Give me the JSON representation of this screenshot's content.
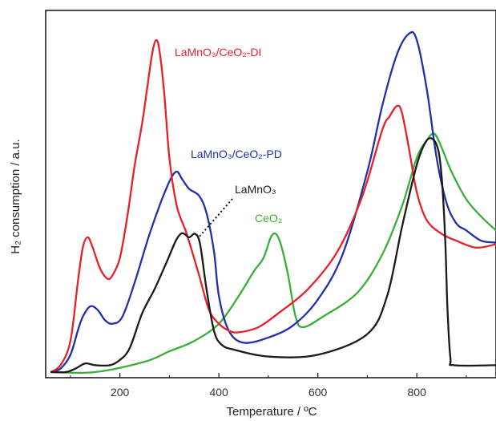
{
  "chart_data": {
    "type": "line",
    "title": "",
    "xlabel": "Temperature / ºC",
    "ylabel": "H₂ consumption / a.u.",
    "xlim": [
      50,
      960
    ],
    "ylim": [
      0,
      1.0
    ],
    "x_ticks": [
      200,
      400,
      600,
      800
    ],
    "y_ticks": [],
    "grid": false,
    "legend": "none (series labelled directly on plot)",
    "series": [
      {
        "name": "LaMnO₃/CeO₂-DI",
        "color": "#e8202a",
        "points": [
          [
            60,
            0.0
          ],
          [
            80,
            0.02
          ],
          [
            100,
            0.09
          ],
          [
            115,
            0.26
          ],
          [
            125,
            0.36
          ],
          [
            135,
            0.39
          ],
          [
            145,
            0.36
          ],
          [
            160,
            0.3
          ],
          [
            175,
            0.27
          ],
          [
            185,
            0.28
          ],
          [
            200,
            0.33
          ],
          [
            215,
            0.45
          ],
          [
            230,
            0.6
          ],
          [
            245,
            0.72
          ],
          [
            255,
            0.82
          ],
          [
            265,
            0.92
          ],
          [
            273,
            0.96
          ],
          [
            280,
            0.93
          ],
          [
            290,
            0.8
          ],
          [
            300,
            0.62
          ],
          [
            315,
            0.48
          ],
          [
            335,
            0.4
          ],
          [
            360,
            0.28
          ],
          [
            380,
            0.18
          ],
          [
            400,
            0.14
          ],
          [
            420,
            0.12
          ],
          [
            440,
            0.115
          ],
          [
            480,
            0.13
          ],
          [
            520,
            0.17
          ],
          [
            580,
            0.24
          ],
          [
            640,
            0.35
          ],
          [
            690,
            0.51
          ],
          [
            730,
            0.7
          ],
          [
            745,
            0.74
          ],
          [
            760,
            0.77
          ],
          [
            770,
            0.75
          ],
          [
            785,
            0.64
          ],
          [
            800,
            0.52
          ],
          [
            820,
            0.44
          ],
          [
            850,
            0.4
          ],
          [
            880,
            0.38
          ],
          [
            920,
            0.36
          ],
          [
            960,
            0.37
          ]
        ]
      },
      {
        "name": "LaMnO₃/CeO₂-PD",
        "color": "#2230a8",
        "points": [
          [
            60,
            0.0
          ],
          [
            80,
            0.01
          ],
          [
            100,
            0.05
          ],
          [
            115,
            0.12
          ],
          [
            125,
            0.16
          ],
          [
            140,
            0.19
          ],
          [
            155,
            0.18
          ],
          [
            170,
            0.15
          ],
          [
            185,
            0.14
          ],
          [
            205,
            0.16
          ],
          [
            230,
            0.26
          ],
          [
            260,
            0.4
          ],
          [
            285,
            0.5
          ],
          [
            303,
            0.56
          ],
          [
            315,
            0.58
          ],
          [
            325,
            0.56
          ],
          [
            340,
            0.53
          ],
          [
            360,
            0.51
          ],
          [
            375,
            0.46
          ],
          [
            390,
            0.35
          ],
          [
            400,
            0.22
          ],
          [
            420,
            0.12
          ],
          [
            450,
            0.085
          ],
          [
            500,
            0.1
          ],
          [
            550,
            0.135
          ],
          [
            600,
            0.21
          ],
          [
            650,
            0.34
          ],
          [
            700,
            0.58
          ],
          [
            730,
            0.77
          ],
          [
            760,
            0.92
          ],
          [
            785,
            0.98
          ],
          [
            800,
            0.96
          ],
          [
            820,
            0.82
          ],
          [
            840,
            0.62
          ],
          [
            860,
            0.49
          ],
          [
            880,
            0.43
          ],
          [
            900,
            0.41
          ],
          [
            930,
            0.38
          ],
          [
            960,
            0.375
          ]
        ]
      },
      {
        "name": "LaMnO₃",
        "color": "#1a1a1a",
        "points": [
          [
            60,
            0.0
          ],
          [
            90,
            0.0
          ],
          [
            110,
            0.01
          ],
          [
            130,
            0.025
          ],
          [
            150,
            0.02
          ],
          [
            180,
            0.02
          ],
          [
            200,
            0.035
          ],
          [
            220,
            0.07
          ],
          [
            245,
            0.17
          ],
          [
            270,
            0.24
          ],
          [
            295,
            0.32
          ],
          [
            313,
            0.38
          ],
          [
            323,
            0.4
          ],
          [
            330,
            0.4
          ],
          [
            340,
            0.39
          ],
          [
            352,
            0.4
          ],
          [
            362,
            0.37
          ],
          [
            375,
            0.24
          ],
          [
            390,
            0.12
          ],
          [
            405,
            0.08
          ],
          [
            430,
            0.065
          ],
          [
            500,
            0.045
          ],
          [
            600,
            0.05
          ],
          [
            700,
            0.11
          ],
          [
            740,
            0.22
          ],
          [
            770,
            0.42
          ],
          [
            800,
            0.6
          ],
          [
            820,
            0.67
          ],
          [
            835,
            0.67
          ],
          [
            845,
            0.63
          ],
          [
            852,
            0.53
          ],
          [
            858,
            0.36
          ],
          [
            862,
            0.18
          ],
          [
            868,
            0.04
          ],
          [
            875,
            0.02
          ],
          [
            960,
            0.02
          ]
        ]
      },
      {
        "name": "CeO₂",
        "color": "#38b038",
        "points": [
          [
            60,
            0.0
          ],
          [
            150,
            0.0
          ],
          [
            250,
            0.03
          ],
          [
            300,
            0.06
          ],
          [
            350,
            0.09
          ],
          [
            400,
            0.14
          ],
          [
            440,
            0.22
          ],
          [
            470,
            0.29
          ],
          [
            490,
            0.33
          ],
          [
            505,
            0.39
          ],
          [
            515,
            0.4
          ],
          [
            525,
            0.37
          ],
          [
            540,
            0.28
          ],
          [
            555,
            0.16
          ],
          [
            570,
            0.13
          ],
          [
            610,
            0.16
          ],
          [
            680,
            0.23
          ],
          [
            730,
            0.34
          ],
          [
            770,
            0.48
          ],
          [
            800,
            0.62
          ],
          [
            820,
            0.67
          ],
          [
            835,
            0.69
          ],
          [
            850,
            0.65
          ],
          [
            870,
            0.58
          ],
          [
            900,
            0.5
          ],
          [
            930,
            0.45
          ],
          [
            960,
            0.41
          ]
        ]
      }
    ],
    "annotations": [
      {
        "text": "LaMnO₃/CeO₂-DI",
        "color": "#e8202a",
        "near": "upper left, right of DI peak"
      },
      {
        "text": "LaMnO₃/CeO₂-PD",
        "color": "#2230a8",
        "near": "center left"
      },
      {
        "text": "LaMnO₃",
        "color": "#1a1a1a",
        "near": "above black shoulder, with dotted leader"
      },
      {
        "text": "CeO₂",
        "color": "#38b038",
        "near": "above green CeO₂ peak"
      }
    ]
  }
}
